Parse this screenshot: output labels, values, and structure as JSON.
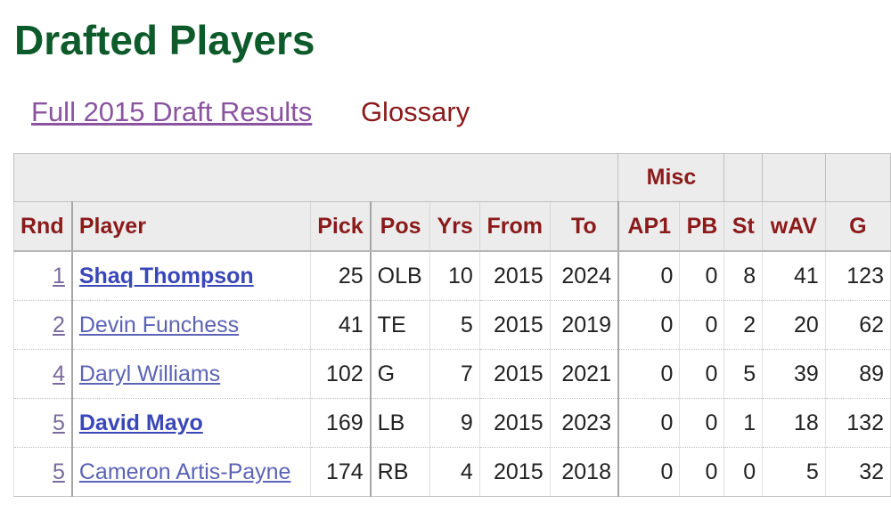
{
  "page": {
    "title": "Drafted Players",
    "links": {
      "full_results": "Full 2015 Draft Results",
      "glossary": "Glossary"
    }
  },
  "table": {
    "over_header": {
      "misc_label": "Misc"
    },
    "columns": {
      "rnd": "Rnd",
      "player": "Player",
      "pick": "Pick",
      "pos": "Pos",
      "yrs": "Yrs",
      "from": "From",
      "to": "To",
      "ap1": "AP1",
      "pb": "PB",
      "st": "St",
      "wav": "wAV",
      "g": "G"
    },
    "rows": [
      {
        "rnd": "1",
        "player": "Shaq Thompson",
        "bold": true,
        "pick": "25",
        "pos": "OLB",
        "yrs": "10",
        "from": "2015",
        "to": "2024",
        "ap1": "0",
        "pb": "0",
        "st": "8",
        "wav": "41",
        "g": "123"
      },
      {
        "rnd": "2",
        "player": "Devin Funchess",
        "bold": false,
        "pick": "41",
        "pos": "TE",
        "yrs": "5",
        "from": "2015",
        "to": "2019",
        "ap1": "0",
        "pb": "0",
        "st": "2",
        "wav": "20",
        "g": "62"
      },
      {
        "rnd": "4",
        "player": "Daryl Williams",
        "bold": false,
        "pick": "102",
        "pos": "G",
        "yrs": "7",
        "from": "2015",
        "to": "2021",
        "ap1": "0",
        "pb": "0",
        "st": "5",
        "wav": "39",
        "g": "89"
      },
      {
        "rnd": "5",
        "player": "David Mayo",
        "bold": true,
        "pick": "169",
        "pos": "LB",
        "yrs": "9",
        "from": "2015",
        "to": "2023",
        "ap1": "0",
        "pb": "0",
        "st": "1",
        "wav": "18",
        "g": "132"
      },
      {
        "rnd": "5",
        "player": "Cameron Artis-Payne",
        "bold": false,
        "pick": "174",
        "pos": "RB",
        "yrs": "4",
        "from": "2015",
        "to": "2018",
        "ap1": "0",
        "pb": "0",
        "st": "0",
        "wav": "5",
        "g": "32"
      }
    ]
  },
  "colors": {
    "title": "#0d5a2b",
    "header_text": "#8b1a1a",
    "link": "#5b63b5",
    "visited_link": "#8a54a0"
  }
}
